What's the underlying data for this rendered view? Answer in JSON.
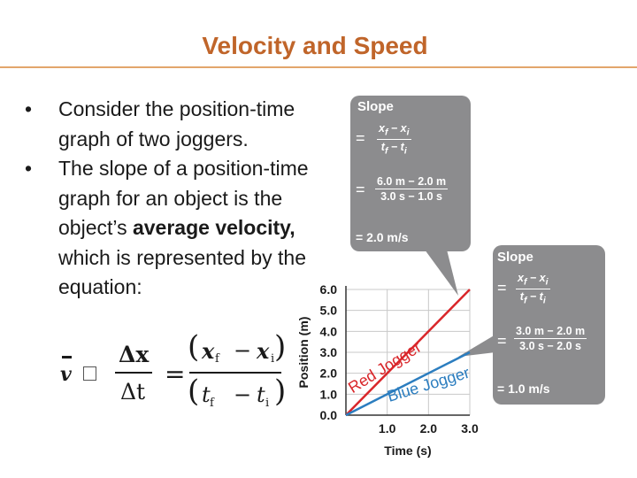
{
  "title": "Velocity and Speed",
  "bullets": [
    {
      "text_before": "Consider the position-time graph of two joggers.",
      "bold": "",
      "text_after": ""
    },
    {
      "text_before": "The slope of a position-time graph for an object is the object’s ",
      "bold": "average velocity,",
      "text_after": " which is represented by the equation:"
    }
  ],
  "equation": {
    "lhs": "v",
    "dx": "Δx",
    "dt": "Δt",
    "x": "x",
    "t": "t",
    "final": "f",
    "initial": "i"
  },
  "slope_box_1": {
    "label": "Slope",
    "line2_num": "6.0 m − 2.0 m",
    "line2_den": "3.0 s − 1.0 s",
    "result": "= 2.0 m/s"
  },
  "slope_box_2": {
    "label": "Slope",
    "line2_num": "3.0 m − 2.0 m",
    "line2_den": "3.0 s − 2.0 s",
    "result": "= 1.0 m/s"
  },
  "chart_data": {
    "type": "line",
    "xlabel": "Time (s)",
    "ylabel": "Position (m)",
    "xlim": [
      0,
      3.0
    ],
    "ylim": [
      0,
      6.0
    ],
    "x_ticks": [
      "1.0",
      "2.0",
      "3.0"
    ],
    "y_ticks": [
      "0.0",
      "1.0",
      "2.0",
      "3.0",
      "4.0",
      "5.0",
      "6.0"
    ],
    "grid": true,
    "series": [
      {
        "name": "Red Jogger",
        "color": "#d9262a",
        "x": [
          0,
          3.0
        ],
        "y": [
          0,
          6.0
        ]
      },
      {
        "name": "Blue Jogger",
        "color": "#2b7dbf",
        "x": [
          0,
          3.0
        ],
        "y": [
          0,
          3.0
        ]
      }
    ]
  }
}
